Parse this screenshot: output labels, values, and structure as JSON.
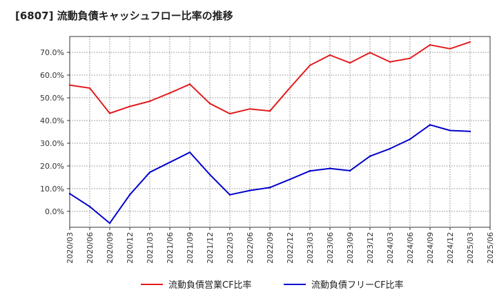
{
  "chart_data": {
    "type": "line",
    "title": "[6807]  流動負債キャッシュフロー比率の推移",
    "xlabel": "",
    "ylabel": "",
    "ylim": [
      -7,
      77
    ],
    "yticks": [
      0,
      10,
      20,
      30,
      40,
      50,
      60,
      70
    ],
    "ytick_labels": [
      "0.0%",
      "10.0%",
      "20.0%",
      "30.0%",
      "40.0%",
      "50.0%",
      "60.0%",
      "70.0%"
    ],
    "categories": [
      "2020/03",
      "2020/06",
      "2020/09",
      "2020/12",
      "2021/03",
      "2021/06",
      "2021/09",
      "2021/12",
      "2022/03",
      "2022/06",
      "2022/09",
      "2022/12",
      "2023/03",
      "2023/06",
      "2023/09",
      "2023/12",
      "2024/03",
      "2024/06",
      "2024/09",
      "2024/12",
      "2025/03",
      "2025/06"
    ],
    "grid": true,
    "legend_position": "bottom",
    "series": [
      {
        "name": "流動負債営業CF比率",
        "color": "#e31a1c",
        "values": [
          55.6,
          54.3,
          43.2,
          46.2,
          48.5,
          52.1,
          56.0,
          47.5,
          43.0,
          45.1,
          44.2,
          54.4,
          64.3,
          68.8,
          65.4,
          69.9,
          65.8,
          67.4,
          73.3,
          71.6,
          74.6,
          null
        ]
      },
      {
        "name": "流動負債フリーCF比率",
        "color": "#0000cc",
        "values": [
          7.8,
          2.1,
          -5.2,
          7.3,
          17.2,
          21.6,
          26.0,
          16.2,
          7.3,
          9.2,
          10.5,
          14.1,
          17.8,
          18.9,
          17.9,
          24.3,
          27.6,
          31.8,
          38.1,
          35.6,
          35.2,
          null
        ]
      }
    ]
  }
}
